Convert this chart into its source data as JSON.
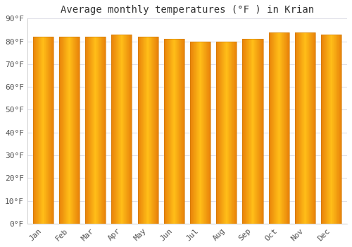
{
  "title": "Average monthly temperatures (°F ) in Krian",
  "months": [
    "Jan",
    "Feb",
    "Mar",
    "Apr",
    "May",
    "Jun",
    "Jul",
    "Aug",
    "Sep",
    "Oct",
    "Nov",
    "Dec"
  ],
  "values": [
    82,
    82,
    82,
    83,
    82,
    81,
    80,
    80,
    81,
    84,
    84,
    83
  ],
  "bar_color_left": "#E8820A",
  "bar_color_mid": "#FFBE18",
  "bar_color_right": "#E8820A",
  "background_color": "#FFFFFF",
  "plot_bg_color": "#FFFFFF",
  "grid_color": "#E0E0E8",
  "ylim": [
    0,
    90
  ],
  "ytick_step": 10,
  "title_fontsize": 10,
  "tick_fontsize": 8,
  "font_family": "monospace"
}
